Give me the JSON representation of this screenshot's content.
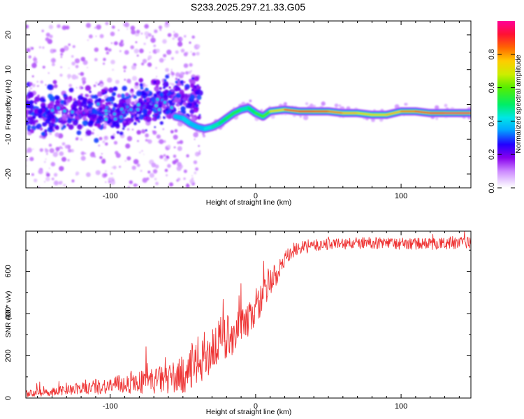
{
  "title": "S233.2025.297.21.33.G05",
  "chart_data": [
    {
      "type": "heatmap",
      "xlabel": "Height of straight line (km)",
      "ylabel": "Frequency (Hz)",
      "xlim": [
        -158,
        148
      ],
      "ylim": [
        -24,
        24
      ],
      "xticks": [
        -100,
        0,
        100
      ],
      "xtick_labels": [
        "-100",
        "0",
        "100"
      ],
      "yticks": [
        -20,
        -10,
        0,
        10,
        20
      ],
      "ytick_labels": [
        "-20",
        "-10",
        "0",
        "10",
        "20"
      ],
      "colorbar": {
        "label": "Normalized spectral amplitude",
        "range": [
          0,
          1
        ],
        "ticks": [
          0.0,
          0.2,
          0.4,
          0.6,
          0.8
        ],
        "tick_labels": [
          "0.0",
          "0.2",
          "0.4",
          "0.6",
          "0.8"
        ]
      },
      "ridge": {
        "x": [
          -55,
          -50,
          -45,
          -40,
          -35,
          -30,
          -25,
          -20,
          -15,
          -10,
          -5,
          0,
          5,
          10,
          20,
          30,
          40,
          50,
          60,
          70,
          80,
          90,
          100,
          110,
          120,
          130,
          140,
          148
        ],
        "freq": [
          -3.5,
          -4,
          -5.5,
          -6.5,
          -7,
          -6.5,
          -5.5,
          -4,
          -2.5,
          -1.5,
          -1,
          -2.5,
          -3.5,
          -2,
          -1.5,
          -2,
          -2,
          -2,
          -2.5,
          -2.5,
          -3,
          -3,
          -2,
          -2,
          -2.5,
          -2.5,
          -2.5,
          -2.5
        ],
        "amplitude": [
          0.35,
          0.4,
          0.4,
          0.35,
          0.4,
          0.45,
          0.5,
          0.5,
          0.55,
          0.5,
          0.45,
          0.55,
          0.55,
          0.6,
          0.85,
          0.9,
          0.9,
          0.85,
          0.8,
          0.75,
          0.7,
          0.75,
          0.8,
          0.85,
          0.9,
          0.95,
          0.95,
          0.95
        ]
      },
      "noise_region": {
        "x_range": [
          -158,
          -38
        ],
        "freq_range": [
          -24,
          24
        ],
        "center_freq": -2,
        "amplitude_range": [
          0.05,
          0.35
        ]
      }
    },
    {
      "type": "line",
      "xlabel": "Height of straight line (km)",
      "ylabel": "SNR (10 * v/v)",
      "xlim": [
        -158,
        148
      ],
      "ylim": [
        0,
        790
      ],
      "xticks": [
        -100,
        0,
        100
      ],
      "xtick_labels": [
        "-100",
        "0",
        "100"
      ],
      "yticks": [
        0,
        200,
        400,
        600
      ],
      "ytick_labels": [
        "0",
        "200",
        "400",
        "600"
      ],
      "color": "#ee3333",
      "series": [
        {
          "name": "SNR",
          "x": [
            -158,
            -140,
            -120,
            -100,
            -80,
            -60,
            -50,
            -45,
            -40,
            -35,
            -30,
            -25,
            -20,
            -15,
            -10,
            -5,
            0,
            5,
            10,
            15,
            20,
            25,
            30,
            40,
            50,
            60,
            80,
            100,
            120,
            148
          ],
          "mean": [
            20,
            30,
            45,
            60,
            75,
            90,
            110,
            130,
            170,
            200,
            230,
            260,
            290,
            310,
            330,
            370,
            420,
            480,
            540,
            590,
            650,
            690,
            710,
            720,
            730,
            730,
            735,
            730,
            730,
            735
          ],
          "spread": [
            18,
            20,
            30,
            40,
            55,
            70,
            90,
            100,
            120,
            120,
            120,
            110,
            110,
            100,
            90,
            80,
            80,
            75,
            70,
            60,
            45,
            35,
            30,
            30,
            28,
            28,
            28,
            28,
            28,
            28
          ]
        }
      ]
    }
  ]
}
